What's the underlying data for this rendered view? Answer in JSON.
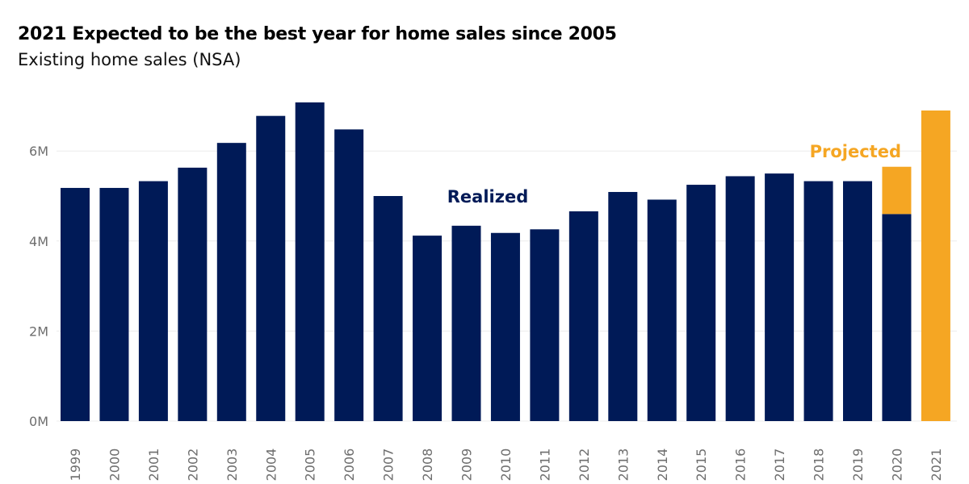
{
  "chart_data": {
    "type": "bar",
    "title": "2021 Expected to be the best year for home sales since 2005",
    "subtitle": "Existing home sales (NSA)",
    "xlabel": "",
    "ylabel": "",
    "ylim": [
      0,
      7.2
    ],
    "yticks": [
      0,
      2,
      4,
      6
    ],
    "ytick_labels": [
      "0M",
      "2M",
      "4M",
      "6M"
    ],
    "grid": true,
    "categories": [
      "1999",
      "2000",
      "2001",
      "2002",
      "2003",
      "2004",
      "2005",
      "2006",
      "2007",
      "2008",
      "2009",
      "2010",
      "2011",
      "2012",
      "2013",
      "2014",
      "2015",
      "2016",
      "2017",
      "2018",
      "2019",
      "2020",
      "2021"
    ],
    "series": [
      {
        "name": "Realized",
        "color": "#001a57",
        "values": [
          5.18,
          5.18,
          5.33,
          5.63,
          6.18,
          6.78,
          7.08,
          6.48,
          5.0,
          4.12,
          4.34,
          4.18,
          4.26,
          4.66,
          5.09,
          4.92,
          5.25,
          5.44,
          5.5,
          5.33,
          5.33,
          4.6,
          0
        ]
      },
      {
        "name": "Projected",
        "color": "#f5a623",
        "values": [
          0,
          0,
          0,
          0,
          0,
          0,
          0,
          0,
          0,
          0,
          0,
          0,
          0,
          0,
          0,
          0,
          0,
          0,
          0,
          0,
          0,
          1.05,
          6.9
        ]
      }
    ],
    "annotations": [
      {
        "text": "Realized",
        "color": "#001a57",
        "near_category": "2010"
      },
      {
        "text": "Projected",
        "color": "#f5a623",
        "near_category": "2020"
      }
    ]
  }
}
